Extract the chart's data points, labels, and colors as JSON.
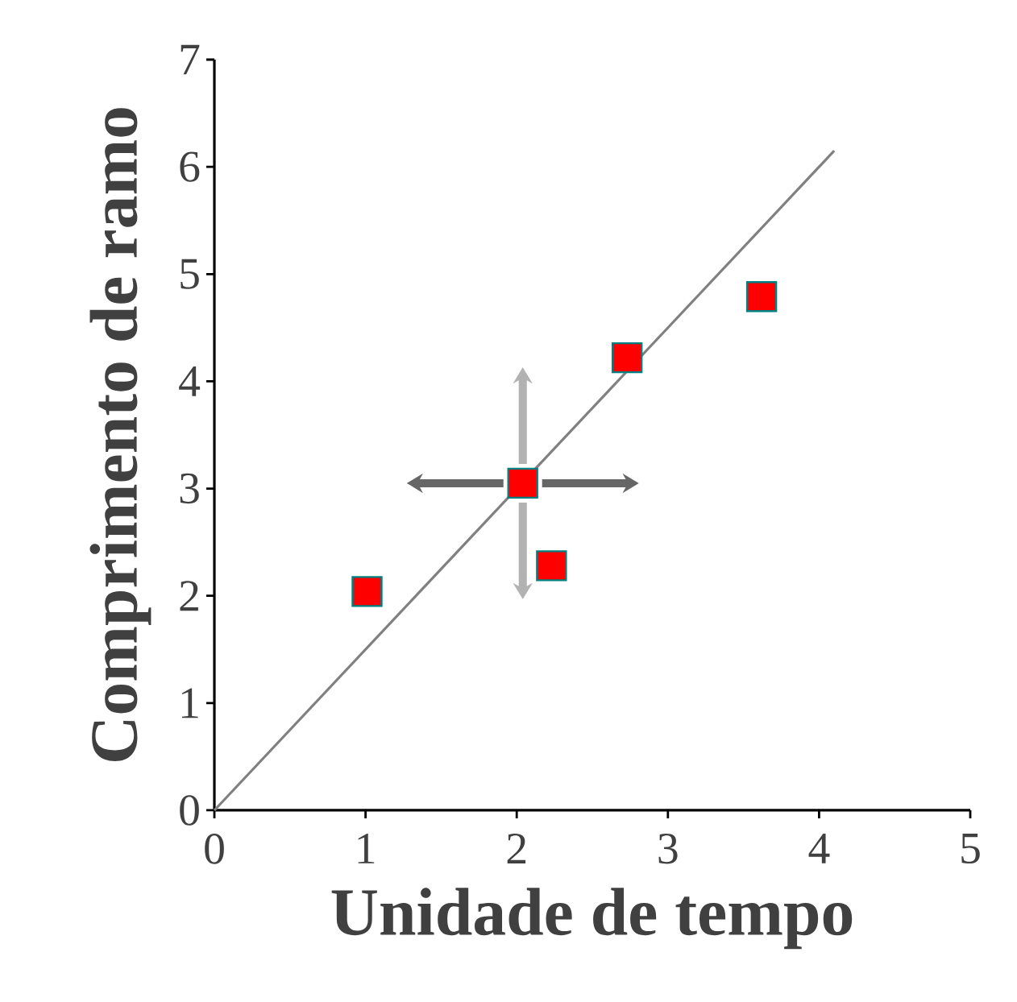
{
  "chart_data": {
    "type": "scatter",
    "xlabel": "Unidade de tempo",
    "ylabel": "Comprimento de ramo",
    "xlim": [
      0,
      5
    ],
    "ylim": [
      0,
      7
    ],
    "xticks": [
      0,
      1,
      2,
      3,
      4,
      5
    ],
    "yticks": [
      0,
      1,
      2,
      3,
      4,
      5,
      6,
      7
    ],
    "grid": false,
    "series": [
      {
        "marker": "square",
        "color": "#ff0000",
        "x": [
          1.01,
          2.04,
          2.23,
          2.73,
          3.62
        ],
        "values": [
          2.04,
          3.05,
          2.28,
          4.22,
          4.79
        ]
      },
      {
        "type": "line",
        "color": "#808080",
        "x": [
          0,
          4.1
        ],
        "values": [
          0,
          6.15
        ]
      }
    ]
  }
}
